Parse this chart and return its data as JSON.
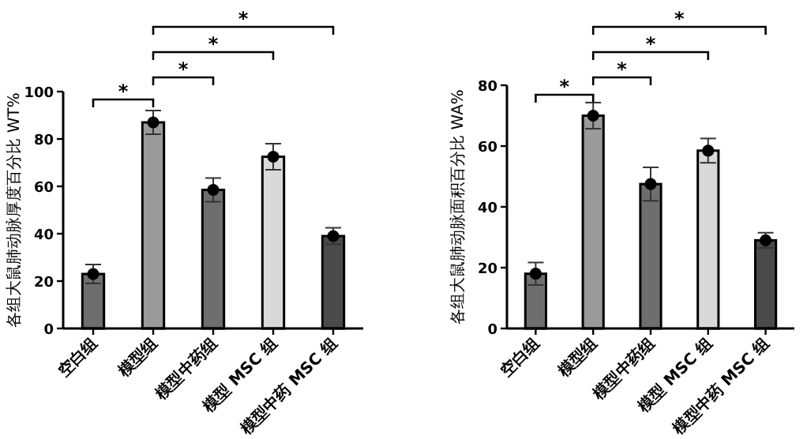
{
  "chart_data": [
    {
      "type": "bar",
      "ylabel": "各组大鼠肺动脉厚度百分比 WT%",
      "categories": [
        "空白组",
        "模型组",
        "模型中药组",
        "模型 MSC 组",
        "模型中药 MSC 组"
      ],
      "series": [
        {
          "type": "bar",
          "colors": [
            "#6e6e6e",
            "#9a9a9a",
            "#6e6e6e",
            "#d9d9d9",
            "#4a4a4a"
          ],
          "values": [
            23,
            87,
            58.5,
            72.5,
            39
          ],
          "errors": [
            4,
            5,
            5,
            5.5,
            3.5
          ]
        },
        {
          "type": "scatter",
          "color": "#000000",
          "x": [
            "空白组",
            "模型组",
            "模型中药组",
            "模型 MSC 组",
            "模型中药 MSC 组"
          ],
          "values": [
            23,
            87,
            58.5,
            72.5,
            39
          ]
        }
      ],
      "marker": "circle",
      "ylim": [
        0,
        100
      ],
      "yticks": [
        0,
        20,
        40,
        60,
        80,
        100
      ],
      "annotations": [
        "*",
        "*",
        "*",
        "*"
      ]
    },
    {
      "type": "bar",
      "ylabel": "各组大鼠肺动脉面积百分比 WA%",
      "categories": [
        "空白组",
        "模型组",
        "模型中药组",
        "模型 MSC 组",
        "模型中药 MSC 组"
      ],
      "series": [
        {
          "type": "bar",
          "colors": [
            "#6e6e6e",
            "#9a9a9a",
            "#6e6e6e",
            "#d9d9d9",
            "#4a4a4a"
          ],
          "values": [
            18,
            70,
            47.5,
            58.5,
            29
          ],
          "errors": [
            3.7,
            4.3,
            5.5,
            4,
            2.5
          ]
        },
        {
          "type": "scatter",
          "color": "#000000",
          "x": [
            "空白组",
            "模型组",
            "模型中药组",
            "模型 MSC 组",
            "模型中药 MSC 组"
          ],
          "values": [
            18,
            70,
            47.5,
            58.5,
            29
          ]
        }
      ],
      "marker": "circle",
      "ylim": [
        0,
        80
      ],
      "yticks": [
        0,
        20,
        40,
        60,
        80
      ],
      "annotations": [
        "*",
        "*",
        "*",
        "*"
      ]
    }
  ]
}
